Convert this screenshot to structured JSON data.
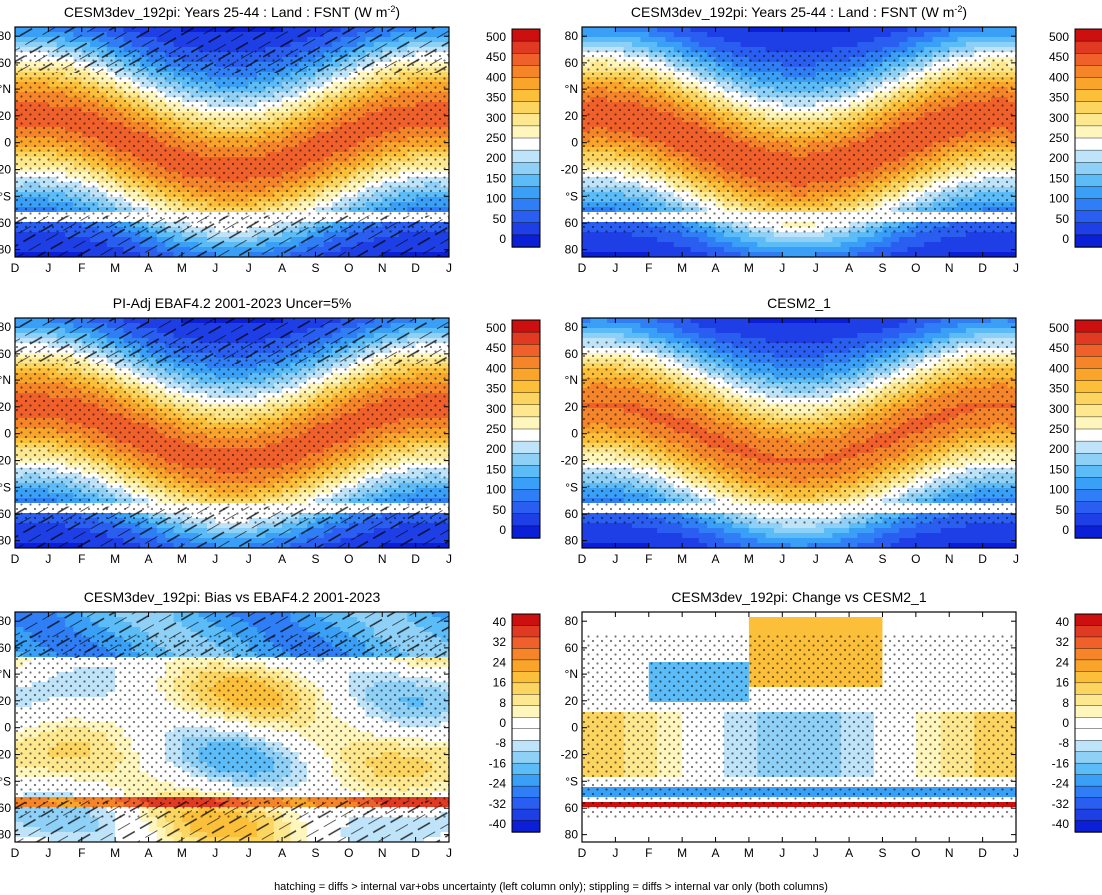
{
  "footnote": "hatching = diffs > internal var+obs uncertainty (left column only); stippling = diffs > internal var only (both columns)",
  "months": [
    "D",
    "J",
    "F",
    "M",
    "A",
    "M",
    "J",
    "J",
    "A",
    "S",
    "O",
    "N",
    "D",
    "J"
  ],
  "lat_ticks": [
    "80",
    "60",
    "°N",
    "20",
    "0",
    "-20",
    "°S",
    "60",
    "80"
  ],
  "abs_levels": [
    "500",
    "450",
    "400",
    "350",
    "300",
    "250",
    "200",
    "150",
    "100",
    "50",
    "0"
  ],
  "diff_levels": [
    "40",
    "32",
    "24",
    "16",
    "8",
    "0",
    "-8",
    "-16",
    "-24",
    "-32",
    "-40"
  ],
  "colors": {
    "abs": [
      "#0a1fd6",
      "#1f3fe6",
      "#2a5ef0",
      "#2f7ef5",
      "#3aa0f7",
      "#5cbcf7",
      "#8fd0f7",
      "#bfe3f8",
      "#ffffff",
      "#fff6bd",
      "#fde88f",
      "#fcd460",
      "#fbbf3a",
      "#f9a42b",
      "#f6852a",
      "#f0602a",
      "#e03a22",
      "#cc0f0f"
    ],
    "diff": [
      "#0a1fd6",
      "#1f3fe6",
      "#2a5ef0",
      "#2f7ef5",
      "#3aa0f7",
      "#5cbcf7",
      "#8fd0f7",
      "#bfe3f8",
      "#ffffff",
      "#ffffff",
      "#fff6bd",
      "#fde88f",
      "#fcd460",
      "#fbbf3a",
      "#f9a42b",
      "#f6852a",
      "#f0602a",
      "#e03a22",
      "#cc0f0f"
    ]
  },
  "chart_data": [
    {
      "type": "heatmap",
      "title": "CESM3dev_192pi: Years 25-44 : Land : FSNT (W m",
      "title_sup": "-2",
      "title_end": ")",
      "xaxis": "months",
      "yaxis": "latitude",
      "colorbar": "abs",
      "hatching": true,
      "stippling": true
    },
    {
      "type": "heatmap",
      "title": "CESM3dev_192pi: Years 25-44 : Land : FSNT (W m",
      "title_sup": "-2",
      "title_end": ")",
      "xaxis": "months",
      "yaxis": "latitude",
      "colorbar": "abs",
      "hatching": false,
      "stippling": true
    },
    {
      "type": "heatmap",
      "title": "PI-Adj EBAF4.2 2001-2023 Uncer=5%",
      "title_sup": "",
      "title_end": "",
      "xaxis": "months",
      "yaxis": "latitude",
      "colorbar": "abs",
      "hatching": true,
      "stippling": true
    },
    {
      "type": "heatmap",
      "title": "CESM2_1",
      "title_sup": "",
      "title_end": "",
      "xaxis": "months",
      "yaxis": "latitude",
      "colorbar": "abs",
      "hatching": false,
      "stippling": true
    },
    {
      "type": "heatmap",
      "title": "CESM3dev_192pi: Bias vs EBAF4.2 2001-2023",
      "title_sup": "",
      "title_end": "",
      "xaxis": "months",
      "yaxis": "latitude",
      "colorbar": "diff",
      "hatching": true,
      "stippling": true
    },
    {
      "type": "heatmap",
      "title": "CESM3dev_192pi: Change vs CESM2_1",
      "title_sup": "",
      "title_end": "",
      "xaxis": "months",
      "yaxis": "latitude",
      "colorbar": "diff",
      "hatching": false,
      "stippling": true
    }
  ]
}
